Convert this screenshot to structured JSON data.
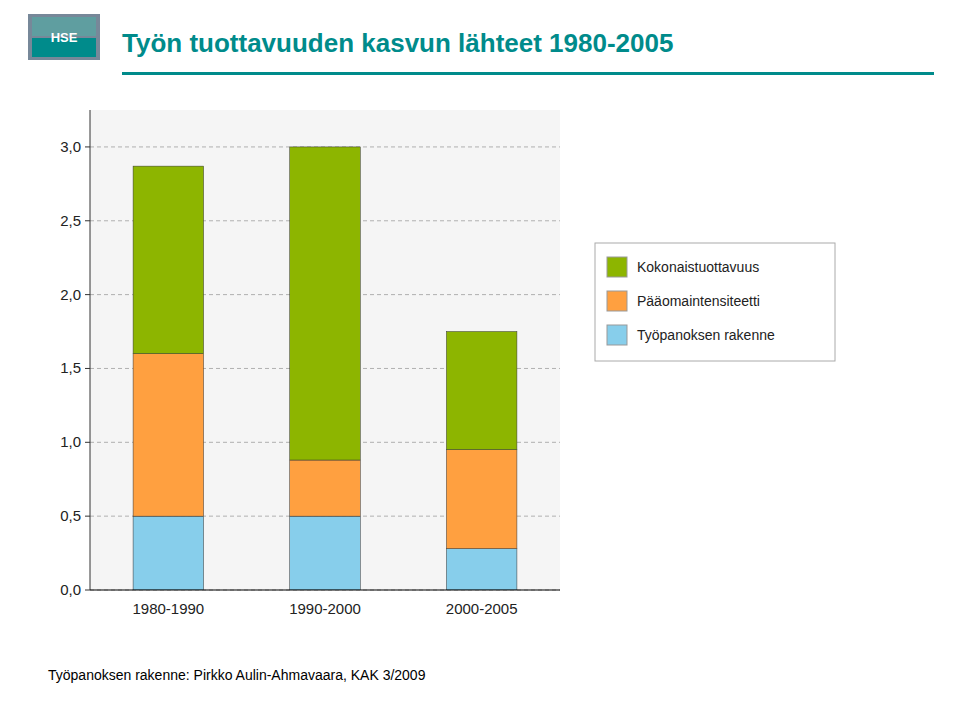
{
  "chart_data": {
    "type": "bar",
    "stacked": true,
    "title": "Työn tuottavuuden kasvun lähteet 1980-2005",
    "annotations": [
      "HSE",
      "Työpanoksen rakenne: Pirkko Aulin-Ahmavaara, KAK 3/2009"
    ],
    "categories": [
      "1980-1990",
      "1990-2000",
      "2000-2005"
    ],
    "series": [
      {
        "name": "Työpanoksen rakenne",
        "color": "#87CEEB",
        "values": [
          0.5,
          0.5,
          0.28
        ]
      },
      {
        "name": "Pääomaintensiteetti",
        "color": "#FFA040",
        "values": [
          1.1,
          0.38,
          0.67
        ]
      },
      {
        "name": "Kokonaistuottavuus",
        "color": "#8DB500",
        "values": [
          1.27,
          2.12,
          0.8
        ]
      }
    ],
    "ylim": [
      0.0,
      3.25
    ],
    "yticks": [
      {
        "value": 0.0,
        "label": "0,0"
      },
      {
        "value": 0.5,
        "label": "0,5"
      },
      {
        "value": 1.0,
        "label": "1,0"
      },
      {
        "value": 1.5,
        "label": "1,5"
      },
      {
        "value": 2.0,
        "label": "2,0"
      },
      {
        "value": 2.5,
        "label": "2,5"
      },
      {
        "value": 3.0,
        "label": "3,0"
      }
    ],
    "grid": true,
    "legend": "right"
  }
}
